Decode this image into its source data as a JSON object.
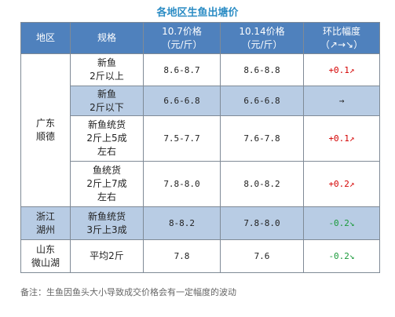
{
  "title": "各地区生鱼出塘价",
  "headers": {
    "region": "地区",
    "spec": "规格",
    "price1": [
      "10.7价格",
      "（元/斤）"
    ],
    "price2": [
      "10.14价格",
      "（元/斤）"
    ],
    "change": [
      "环比幅度",
      "（↗→↘）"
    ]
  },
  "rows": [
    {
      "region": [
        "广东",
        "顺德"
      ],
      "spec": [
        "新鱼",
        "2斤以上"
      ],
      "p1": "8.6-8.7",
      "p2": "8.6-8.8",
      "change": "+0.1↗",
      "trend": "up",
      "shaded": false
    },
    {
      "region": null,
      "spec": [
        "新鱼",
        "2斤以下"
      ],
      "p1": "6.6-6.8",
      "p2": "6.6-6.8",
      "change": "→",
      "trend": "flat",
      "shaded": true
    },
    {
      "region": null,
      "spec": [
        "新鱼统货",
        "2斤上5成",
        "左右"
      ],
      "p1": "7.5-7.7",
      "p2": "7.6-7.8",
      "change": "+0.1↗",
      "trend": "up",
      "shaded": false
    },
    {
      "region": null,
      "spec": [
        "鱼统货",
        "2斤上7成",
        "左右"
      ],
      "p1": "7.8-8.0",
      "p2": "8.0-8.2",
      "change": "+0.2↗",
      "trend": "up",
      "shaded": false
    },
    {
      "region": [
        "浙江",
        "湖州"
      ],
      "spec": [
        "新鱼统货",
        "3斤上3成"
      ],
      "p1": "8-8.2",
      "p2": "7.8-8.0",
      "change": "-0.2↘",
      "trend": "down",
      "shaded": true
    },
    {
      "region": [
        "山东",
        "微山湖"
      ],
      "spec": [
        "平均2斤"
      ],
      "p1": "7.8",
      "p2": "7.6",
      "change": "-0.2↘",
      "trend": "down",
      "shaded": false
    }
  ],
  "note": "备注：生鱼因鱼头大小导致成交价格会有一定幅度的波动"
}
